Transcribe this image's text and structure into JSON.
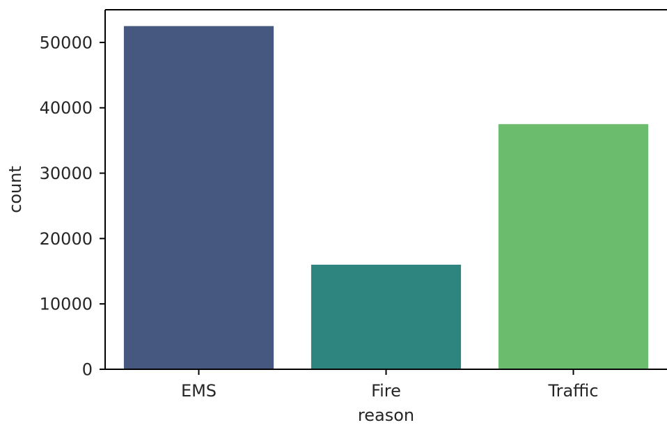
{
  "chart_data": {
    "type": "bar",
    "xlabel": "reason",
    "ylabel": "count",
    "categories": [
      "EMS",
      "Fire",
      "Traffic"
    ],
    "values": [
      52500,
      16000,
      37500
    ],
    "colors": [
      "#46587f",
      "#2e857f",
      "#6bbd6d"
    ],
    "ylim": [
      0,
      55000
    ],
    "yticks": [
      0,
      10000,
      20000,
      30000,
      40000,
      50000
    ],
    "ytick_labels": [
      "0",
      "10000",
      "20000",
      "30000",
      "40000",
      "50000"
    ],
    "grid": false,
    "legend": "none"
  }
}
